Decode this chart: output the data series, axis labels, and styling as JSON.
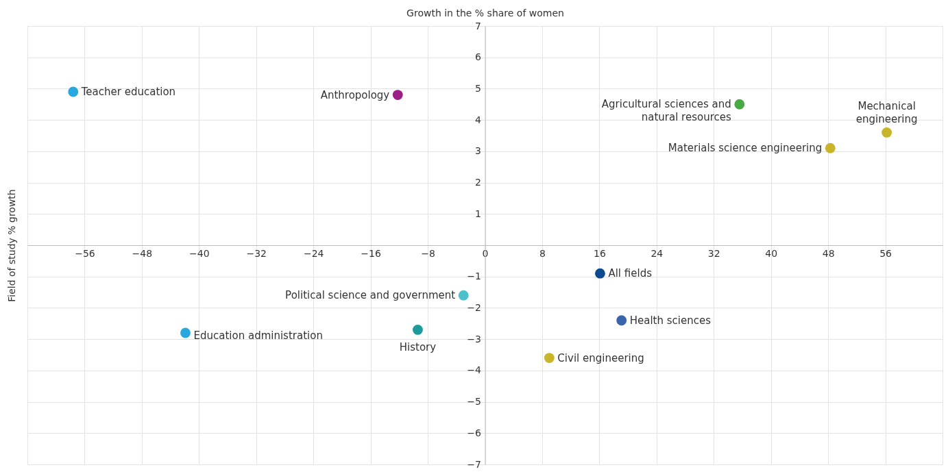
{
  "chart_data": {
    "type": "scatter",
    "xlabel": "Growth in the % share of women",
    "ylabel": "Field of study % growth",
    "xlim": [
      -64,
      64
    ],
    "xticks": [
      -56,
      -48,
      -40,
      -32,
      -24,
      -16,
      -8,
      0,
      8,
      16,
      24,
      32,
      40,
      48,
      56
    ],
    "ylim": [
      -7,
      7
    ],
    "yticks": [
      -7,
      -6,
      -5,
      -4,
      -3,
      -2,
      -1,
      1,
      2,
      3,
      4,
      5,
      6,
      7
    ],
    "grid": true,
    "marker": "circle",
    "series": [
      {
        "name": "Teacher education",
        "color": "#29a8e0",
        "x": [
          -57.6
        ],
        "values": [
          4.9
        ]
      },
      {
        "name": "Anthropology",
        "color": "#9b1f86",
        "x": [
          -12.2
        ],
        "values": [
          4.8
        ]
      },
      {
        "name": "Agricultural sciences and natural resources",
        "color": "#4aaa42",
        "x": [
          35.6
        ],
        "values": [
          4.5
        ]
      },
      {
        "name": "Mechanical engineering",
        "color": "#c9b52a",
        "x": [
          56.2
        ],
        "values": [
          3.6
        ]
      },
      {
        "name": "Materials science engineering",
        "color": "#c9b52a",
        "x": [
          48.3
        ],
        "values": [
          3.1
        ]
      },
      {
        "name": "All fields",
        "color": "#0d4a8f",
        "x": [
          16.1
        ],
        "values": [
          -0.9
        ]
      },
      {
        "name": "Political science and government",
        "color": "#4cc1cc",
        "x": [
          -3.0
        ],
        "values": [
          -1.6
        ]
      },
      {
        "name": "Health sciences",
        "color": "#3b64ad",
        "x": [
          19.1
        ],
        "values": [
          -2.4
        ]
      },
      {
        "name": "Education administration",
        "color": "#29a8e0",
        "x": [
          -41.9
        ],
        "values": [
          -2.8
        ]
      },
      {
        "name": "History",
        "color": "#1f9a9a",
        "x": [
          -9.4
        ],
        "values": [
          -2.7
        ]
      },
      {
        "name": "Civil engineering",
        "color": "#c9b52a",
        "x": [
          9.0
        ],
        "values": [
          -3.6
        ]
      }
    ]
  }
}
